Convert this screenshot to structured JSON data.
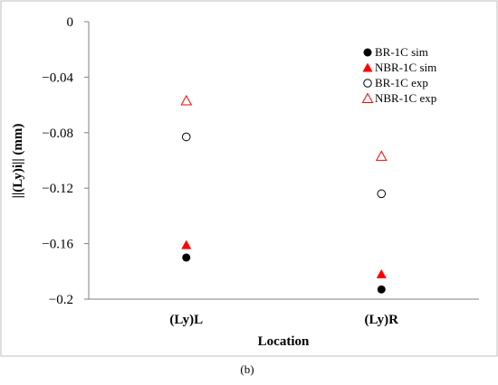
{
  "chart_data": {
    "type": "scatter",
    "caption": "(b)",
    "xlabel": "Location",
    "ylabel": "||(Ly)i||   (mm)",
    "categories": [
      "(Ly)L",
      "(Ly)R"
    ],
    "ylim": [
      -0.2,
      0
    ],
    "yticks": [
      0,
      -0.04,
      -0.08,
      -0.12,
      -0.16,
      -0.2
    ],
    "ytick_labels": [
      "0",
      "−0.04",
      "−0.08",
      "−0.12",
      "−0.16",
      "−0.2"
    ],
    "grid": false,
    "legend_position": "top-right",
    "series": [
      {
        "name": "BR-1C sim",
        "marker": "circle-filled",
        "color": "#000000",
        "values": [
          -0.17,
          -0.193
        ]
      },
      {
        "name": "NBR-1C sim",
        "marker": "triangle-filled",
        "color": "#ff0000",
        "values": [
          -0.161,
          -0.182
        ]
      },
      {
        "name": "BR-1C exp",
        "marker": "circle-open",
        "color": "#000000",
        "values": [
          -0.083,
          -0.124
        ]
      },
      {
        "name": "NBR-1C exp",
        "marker": "triangle-open",
        "color": "#ff0000",
        "values": [
          -0.057,
          -0.097
        ]
      }
    ]
  }
}
